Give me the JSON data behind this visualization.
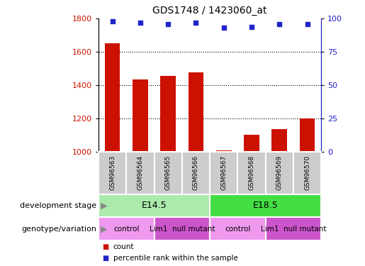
{
  "title": "GDS1748 / 1423060_at",
  "samples": [
    "GSM96563",
    "GSM96564",
    "GSM96565",
    "GSM96566",
    "GSM96567",
    "GSM96568",
    "GSM96569",
    "GSM96570"
  ],
  "counts": [
    1650,
    1435,
    1455,
    1475,
    1008,
    1100,
    1135,
    1200
  ],
  "percentiles": [
    98,
    97,
    96,
    97,
    93,
    93.5,
    96,
    96
  ],
  "ylim_left": [
    1000,
    1800
  ],
  "ylim_right": [
    0,
    100
  ],
  "yticks_left": [
    1000,
    1200,
    1400,
    1600,
    1800
  ],
  "yticks_right": [
    0,
    25,
    50,
    75,
    100
  ],
  "bar_color": "#cc1100",
  "dot_color": "#2222cc",
  "development_stages": [
    {
      "label": "E14.5",
      "start": 0,
      "end": 4,
      "color": "#aaeaaa"
    },
    {
      "label": "E18.5",
      "start": 4,
      "end": 8,
      "color": "#44dd44"
    }
  ],
  "genotype_groups": [
    {
      "label": "control",
      "start": 0,
      "end": 2,
      "color": "#ee99ee"
    },
    {
      "label": "Lim1  null mutant",
      "start": 2,
      "end": 4,
      "color": "#cc55cc"
    },
    {
      "label": "control",
      "start": 4,
      "end": 6,
      "color": "#ee99ee"
    },
    {
      "label": "Lim1  null mutant",
      "start": 6,
      "end": 8,
      "color": "#cc55cc"
    }
  ],
  "dev_label": "development stage",
  "geno_label": "genotype/variation",
  "legend_count_label": "count",
  "legend_pct_label": "percentile rank within the sample",
  "sample_box_color": "#cccccc",
  "bar_width": 0.55
}
